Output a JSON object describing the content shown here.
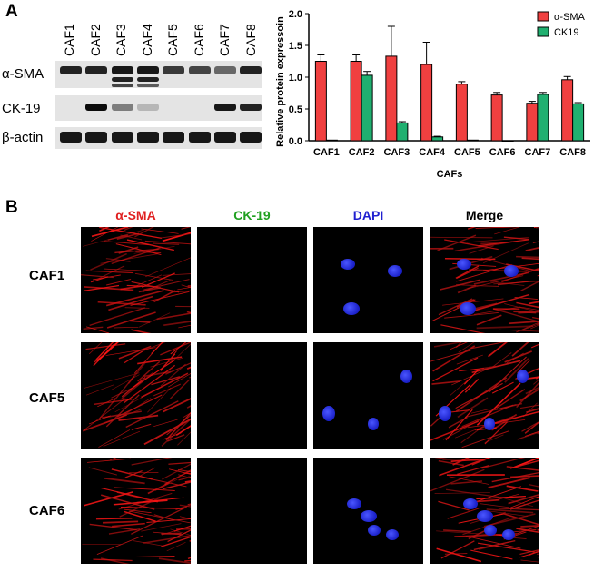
{
  "panel_a_letter": "A",
  "panel_b_letter": "B",
  "blot": {
    "lanes": [
      "CAF1",
      "CAF2",
      "CAF3",
      "CAF4",
      "CAF5",
      "CAF6",
      "CAF7",
      "CAF8"
    ],
    "rows": [
      "α-SMA",
      "CK-19",
      "β-actin"
    ]
  },
  "chart_data": {
    "type": "bar",
    "categories": [
      "CAF1",
      "CAF2",
      "CAF3",
      "CAF4",
      "CAF5",
      "CAF6",
      "CAF7",
      "CAF8"
    ],
    "series": [
      {
        "name": "α-SMA",
        "values": [
          1.25,
          1.25,
          1.33,
          1.2,
          0.89,
          0.72,
          0.59,
          0.96
        ],
        "errors": [
          0.1,
          0.1,
          0.47,
          0.35,
          0.04,
          0.04,
          0.03,
          0.05
        ],
        "color": "#f04040"
      },
      {
        "name": "CK19",
        "values": [
          0.01,
          1.03,
          0.28,
          0.06,
          0.01,
          0.0,
          0.73,
          0.58
        ],
        "errors": [
          0.0,
          0.06,
          0.02,
          0.01,
          0.0,
          0.0,
          0.03,
          0.02
        ],
        "color": "#20b070"
      }
    ],
    "xlabel": "CAFs",
    "ylabel": "Relative protein expressoin",
    "ylim": [
      0,
      2.0
    ],
    "yticks": [
      "0.0",
      "0.5",
      "1.0",
      "1.5",
      "2.0"
    ],
    "legend_position": "top-right"
  },
  "microscopy": {
    "columns": [
      {
        "label": "α-SMA",
        "color": "#e02020"
      },
      {
        "label": "CK-19",
        "color": "#20a020"
      },
      {
        "label": "DAPI",
        "color": "#2020d0"
      },
      {
        "label": "Merge",
        "color": "#000000"
      }
    ],
    "rows": [
      "CAF1",
      "CAF5",
      "CAF6"
    ]
  }
}
